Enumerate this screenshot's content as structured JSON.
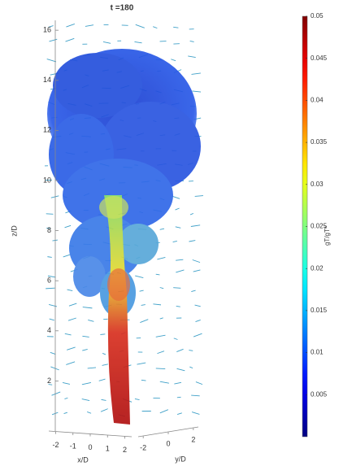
{
  "chart_data": {
    "type": "volume",
    "title": "t =180",
    "xlabel": "x/D",
    "ylabel": "y/D",
    "zlabel": "z/D",
    "xlim": [
      -2.4,
      2.4
    ],
    "xticks": [
      -2,
      -1,
      0,
      1,
      2
    ],
    "ylim": [
      -2.4,
      2.4
    ],
    "yticks": [
      -2,
      0,
      2
    ],
    "zlim": [
      0,
      16.2
    ],
    "zticks": [
      2,
      4,
      6,
      8,
      10,
      12,
      14,
      16
    ],
    "colorbar": {
      "label": "gT/gT*",
      "colormap": "jet",
      "clim": [
        0,
        0.05
      ],
      "ticks": [
        0.005,
        0.01,
        0.015,
        0.02,
        0.025,
        0.03,
        0.035,
        0.04,
        0.045,
        0.05
      ]
    }
  }
}
